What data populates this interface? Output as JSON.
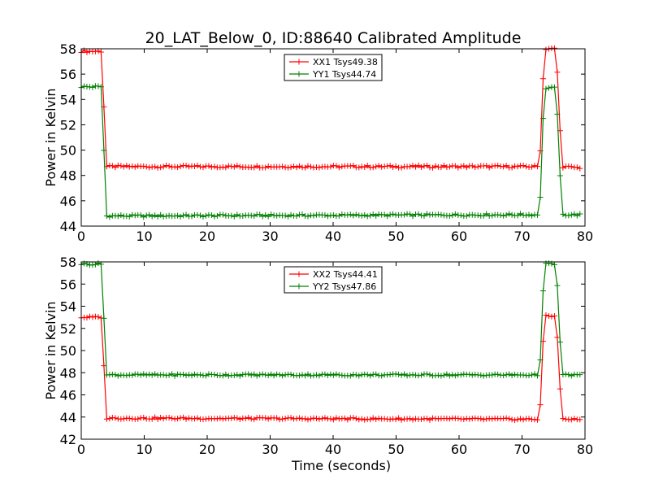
{
  "title": "20_LAT_Below_0, ID:88640 Calibrated Amplitude",
  "chart_data": [
    {
      "type": "line",
      "ylabel": "Power in Kelvin",
      "xlabel": "",
      "xlim": [
        0,
        80
      ],
      "ylim": [
        44,
        58
      ],
      "xticks": [
        0,
        10,
        20,
        30,
        40,
        50,
        60,
        70,
        80
      ],
      "yticks": [
        44,
        46,
        48,
        50,
        52,
        54,
        56,
        58
      ],
      "legend_position": "top-center",
      "series": [
        {
          "name": "XX1 Tsys49.38",
          "color": "#ff0000",
          "x": [
            0,
            3.3,
            3.7,
            4.0,
            72.8,
            73.3,
            73.7,
            75.3,
            75.9,
            76.2,
            79.5
          ],
          "y": [
            57.8,
            57.8,
            52.0,
            48.7,
            48.7,
            55.3,
            58.0,
            58.0,
            54.3,
            48.7,
            48.6
          ]
        },
        {
          "name": "YY1 Tsys44.74",
          "color": "#008000",
          "x": [
            0,
            3.3,
            3.7,
            4.0,
            72.8,
            73.3,
            73.7,
            75.3,
            75.9,
            76.2,
            79.5
          ],
          "y": [
            55.0,
            55.0,
            48.3,
            44.8,
            44.9,
            52.1,
            54.9,
            54.9,
            50.9,
            44.9,
            44.9
          ]
        }
      ]
    },
    {
      "type": "line",
      "ylabel": "Power in Kelvin",
      "xlabel": "Time (seconds)",
      "xlim": [
        0,
        80
      ],
      "ylim": [
        42,
        58
      ],
      "xticks": [
        0,
        10,
        20,
        30,
        40,
        50,
        60,
        70,
        80
      ],
      "yticks": [
        42,
        44,
        46,
        48,
        50,
        52,
        54,
        56,
        58
      ],
      "legend_position": "top-center",
      "series": [
        {
          "name": "XX2 Tsys44.41",
          "color": "#ff0000",
          "x": [
            0,
            3.3,
            3.7,
            4.0,
            72.8,
            73.3,
            73.7,
            75.3,
            75.9,
            76.2,
            79.5
          ],
          "y": [
            53.0,
            53.0,
            47.1,
            43.9,
            43.8,
            50.5,
            53.1,
            53.1,
            49.4,
            43.8,
            43.8
          ]
        },
        {
          "name": "YY2 Tsys47.86",
          "color": "#008000",
          "x": [
            0,
            3.3,
            3.7,
            4.0,
            72.8,
            73.3,
            73.7,
            75.3,
            75.9,
            76.2,
            79.5
          ],
          "y": [
            57.8,
            57.8,
            51.4,
            47.8,
            47.8,
            55.0,
            57.8,
            57.8,
            53.8,
            47.8,
            47.8
          ]
        }
      ]
    }
  ]
}
